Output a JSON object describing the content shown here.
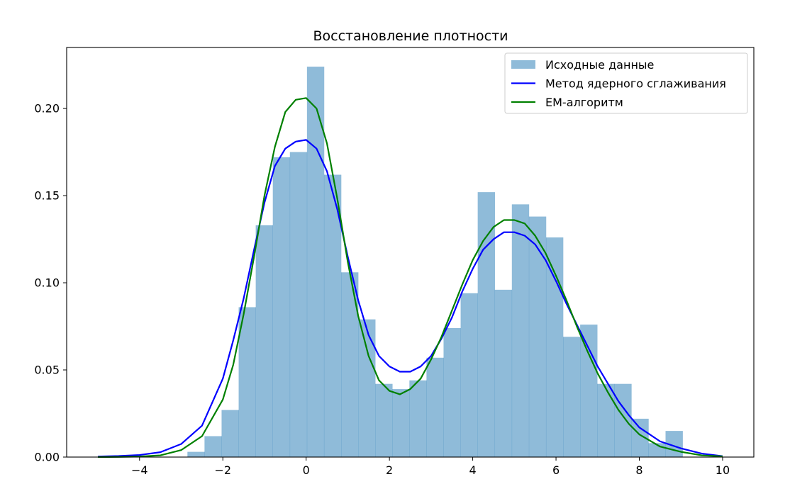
{
  "chart_data": {
    "type": "bar",
    "title": "Восстановление плотности",
    "xlabel": "",
    "ylabel": "",
    "xlim": [
      -5.75,
      10.75
    ],
    "ylim": [
      0,
      0.235
    ],
    "xticks": [
      -4,
      -2,
      0,
      2,
      4,
      6,
      8,
      10
    ],
    "xtick_labels": [
      "−4",
      "−2",
      "0",
      "2",
      "4",
      "6",
      "8",
      "10"
    ],
    "yticks": [
      0.0,
      0.05,
      0.1,
      0.15,
      0.2
    ],
    "ytick_labels": [
      "0.00",
      "0.05",
      "0.10",
      "0.15",
      "0.20"
    ],
    "grid": false,
    "legend_position": "top-right",
    "histogram": {
      "name": "Исходные данные",
      "color": "#1f77b4",
      "alpha": 0.5,
      "bins": [
        {
          "x0": -2.85,
          "x1": -2.44,
          "y": 0.003
        },
        {
          "x0": -2.44,
          "x1": -2.03,
          "y": 0.012
        },
        {
          "x0": -2.03,
          "x1": -1.62,
          "y": 0.027
        },
        {
          "x0": -1.62,
          "x1": -1.21,
          "y": 0.086
        },
        {
          "x0": -1.21,
          "x1": -0.8,
          "y": 0.133
        },
        {
          "x0": -0.8,
          "x1": -0.39,
          "y": 0.172
        },
        {
          "x0": -0.39,
          "x1": 0.02,
          "y": 0.175
        },
        {
          "x0": 0.02,
          "x1": 0.43,
          "y": 0.224
        },
        {
          "x0": 0.43,
          "x1": 0.84,
          "y": 0.162
        },
        {
          "x0": 0.84,
          "x1": 1.25,
          "y": 0.106
        },
        {
          "x0": 1.25,
          "x1": 1.66,
          "y": 0.079
        },
        {
          "x0": 1.66,
          "x1": 2.07,
          "y": 0.042
        },
        {
          "x0": 2.07,
          "x1": 2.48,
          "y": 0.039
        },
        {
          "x0": 2.48,
          "x1": 2.89,
          "y": 0.044
        },
        {
          "x0": 2.89,
          "x1": 3.3,
          "y": 0.057
        },
        {
          "x0": 3.3,
          "x1": 3.71,
          "y": 0.074
        },
        {
          "x0": 3.71,
          "x1": 4.12,
          "y": 0.094
        },
        {
          "x0": 4.12,
          "x1": 4.53,
          "y": 0.152
        },
        {
          "x0": 4.53,
          "x1": 4.94,
          "y": 0.096
        },
        {
          "x0": 4.94,
          "x1": 5.35,
          "y": 0.145
        },
        {
          "x0": 5.35,
          "x1": 5.76,
          "y": 0.138
        },
        {
          "x0": 5.76,
          "x1": 6.17,
          "y": 0.126
        },
        {
          "x0": 6.17,
          "x1": 6.58,
          "y": 0.069
        },
        {
          "x0": 6.58,
          "x1": 6.99,
          "y": 0.076
        },
        {
          "x0": 6.99,
          "x1": 7.4,
          "y": 0.042
        },
        {
          "x0": 7.4,
          "x1": 7.81,
          "y": 0.042
        },
        {
          "x0": 7.81,
          "x1": 8.22,
          "y": 0.022
        },
        {
          "x0": 8.22,
          "x1": 8.63,
          "y": 0.008
        },
        {
          "x0": 8.63,
          "x1": 9.04,
          "y": 0.015
        }
      ]
    },
    "series": [
      {
        "name": "Метод ядерного сглаживания",
        "color": "#0000ff",
        "x": [
          -5.0,
          -4.5,
          -4.0,
          -3.5,
          -3.0,
          -2.5,
          -2.0,
          -1.75,
          -1.5,
          -1.25,
          -1.0,
          -0.75,
          -0.5,
          -0.25,
          0.0,
          0.25,
          0.5,
          0.75,
          1.0,
          1.25,
          1.5,
          1.75,
          2.0,
          2.25,
          2.5,
          2.75,
          3.0,
          3.25,
          3.5,
          3.75,
          4.0,
          4.25,
          4.5,
          4.75,
          5.0,
          5.25,
          5.5,
          5.75,
          6.0,
          6.25,
          6.5,
          6.75,
          7.0,
          7.25,
          7.5,
          7.75,
          8.0,
          8.5,
          9.0,
          9.5,
          10.0
        ],
        "y": [
          0.0003,
          0.0006,
          0.0012,
          0.0028,
          0.0075,
          0.018,
          0.045,
          0.067,
          0.091,
          0.119,
          0.146,
          0.167,
          0.177,
          0.181,
          0.182,
          0.177,
          0.164,
          0.142,
          0.115,
          0.09,
          0.07,
          0.058,
          0.052,
          0.049,
          0.049,
          0.052,
          0.058,
          0.068,
          0.08,
          0.095,
          0.108,
          0.119,
          0.125,
          0.129,
          0.129,
          0.127,
          0.122,
          0.113,
          0.101,
          0.088,
          0.076,
          0.064,
          0.052,
          0.042,
          0.032,
          0.024,
          0.017,
          0.009,
          0.005,
          0.002,
          0.0005
        ]
      },
      {
        "name": "ЕМ-алгоритм",
        "color": "#008000",
        "x": [
          -5.0,
          -4.5,
          -4.0,
          -3.5,
          -3.0,
          -2.5,
          -2.0,
          -1.75,
          -1.5,
          -1.25,
          -1.0,
          -0.75,
          -0.5,
          -0.25,
          0.0,
          0.25,
          0.5,
          0.75,
          1.0,
          1.25,
          1.5,
          1.75,
          2.0,
          2.25,
          2.5,
          2.75,
          3.0,
          3.25,
          3.5,
          3.75,
          4.0,
          4.25,
          4.5,
          4.75,
          5.0,
          5.25,
          5.5,
          5.75,
          6.0,
          6.25,
          6.5,
          6.75,
          7.0,
          7.25,
          7.5,
          7.75,
          8.0,
          8.5,
          9.0,
          9.5,
          10.0
        ],
        "y": [
          0.0,
          0.0001,
          0.0003,
          0.001,
          0.004,
          0.012,
          0.033,
          0.053,
          0.082,
          0.115,
          0.15,
          0.178,
          0.198,
          0.205,
          0.206,
          0.2,
          0.18,
          0.148,
          0.112,
          0.081,
          0.058,
          0.044,
          0.038,
          0.036,
          0.039,
          0.045,
          0.056,
          0.069,
          0.084,
          0.099,
          0.113,
          0.124,
          0.132,
          0.136,
          0.136,
          0.134,
          0.127,
          0.117,
          0.104,
          0.09,
          0.075,
          0.061,
          0.048,
          0.037,
          0.027,
          0.019,
          0.013,
          0.006,
          0.003,
          0.001,
          0.0004
        ]
      }
    ]
  }
}
